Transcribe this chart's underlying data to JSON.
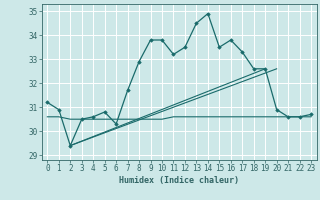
{
  "xlabel": "Humidex (Indice chaleur)",
  "background_color": "#cde8e8",
  "grid_color": "#ffffff",
  "line_color": "#1a6b6b",
  "xlim": [
    -0.5,
    23.5
  ],
  "ylim": [
    28.8,
    35.3
  ],
  "yticks": [
    29,
    30,
    31,
    32,
    33,
    34,
    35
  ],
  "xticks": [
    0,
    1,
    2,
    3,
    4,
    5,
    6,
    7,
    8,
    9,
    10,
    11,
    12,
    13,
    14,
    15,
    16,
    17,
    18,
    19,
    20,
    21,
    22,
    23
  ],
  "series1_x": [
    0,
    1,
    2,
    3,
    4,
    5,
    6,
    7,
    8,
    9,
    10,
    11,
    12,
    13,
    14,
    15,
    16,
    17,
    18,
    19,
    20,
    21,
    22,
    23
  ],
  "series1_y": [
    31.2,
    30.9,
    29.4,
    30.5,
    30.6,
    30.8,
    30.3,
    31.7,
    32.9,
    33.8,
    33.8,
    33.2,
    33.5,
    34.5,
    34.9,
    33.5,
    33.8,
    33.3,
    32.6,
    32.6,
    30.9,
    30.6,
    30.6,
    30.7
  ],
  "series2_x": [
    0,
    1,
    2,
    3,
    4,
    5,
    6,
    7,
    8,
    9,
    10,
    11,
    12,
    13,
    14,
    15,
    16,
    17,
    18,
    19,
    20,
    21,
    22,
    23
  ],
  "series2_y": [
    30.6,
    30.6,
    30.5,
    30.5,
    30.5,
    30.5,
    30.5,
    30.5,
    30.5,
    30.5,
    30.5,
    30.6,
    30.6,
    30.6,
    30.6,
    30.6,
    30.6,
    30.6,
    30.6,
    30.6,
    30.6,
    30.6,
    30.6,
    30.6
  ],
  "trend1_x": [
    2,
    19
  ],
  "trend1_y": [
    29.4,
    32.6
  ],
  "trend2_x": [
    2,
    20
  ],
  "trend2_y": [
    29.4,
    32.6
  ],
  "xlabel_fontsize": 6,
  "tick_fontsize": 5.5
}
